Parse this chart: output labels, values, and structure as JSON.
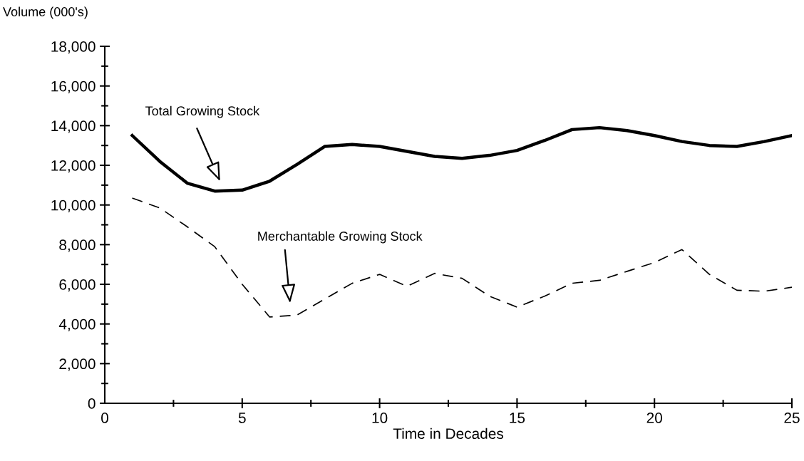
{
  "chart_data": {
    "type": "line",
    "ylabel": "Volume (000's)",
    "xlabel": "Time in Decades",
    "x": [
      1,
      2,
      3,
      4,
      5,
      6,
      7,
      8,
      9,
      10,
      11,
      12,
      13,
      14,
      15,
      16,
      17,
      18,
      19,
      20,
      21,
      22,
      23,
      24,
      25
    ],
    "series": [
      {
        "color": "#000000",
        "line_style": "solid",
        "values": [
          13500,
          12200,
          11100,
          10700,
          10750,
          11200,
          12050,
          12950,
          13050,
          12950,
          12700,
          12450,
          12350,
          12500,
          12750,
          13250,
          13800,
          13900,
          13750,
          13500,
          13200,
          13000,
          12950,
          13200,
          13500
        ]
      },
      {
        "color": "#000000",
        "line_style": "dashed",
        "values": [
          10350,
          9850,
          8900,
          7900,
          6000,
          4350,
          4450,
          5250,
          6050,
          6500,
          5900,
          6550,
          6300,
          5400,
          4850,
          5400,
          6050,
          6200,
          6650,
          7100,
          7750,
          6500,
          5700,
          5650,
          5850
        ]
      }
    ],
    "annotations": [
      "Total Growing Stock",
      "Merchantable Growing Stock"
    ],
    "xlim": [
      0,
      25
    ],
    "xticks": [
      0,
      5,
      10,
      15,
      20,
      25
    ],
    "ylim": [
      0,
      18000
    ],
    "yticks": [
      {
        "value": 0,
        "label": "0"
      },
      {
        "value": 2000,
        "label": "2,000"
      },
      {
        "value": 4000,
        "label": "4,000"
      },
      {
        "value": 6000,
        "label": "6,000"
      },
      {
        "value": 8000,
        "label": "8,000"
      },
      {
        "value": 10000,
        "label": "10,000"
      },
      {
        "value": 12000,
        "label": "12,000"
      },
      {
        "value": 14000,
        "label": "14,000"
      },
      {
        "value": 16000,
        "label": "16,000"
      },
      {
        "value": 18000,
        "label": "18,000"
      }
    ],
    "grid": false,
    "legend": false,
    "marker": "none"
  }
}
